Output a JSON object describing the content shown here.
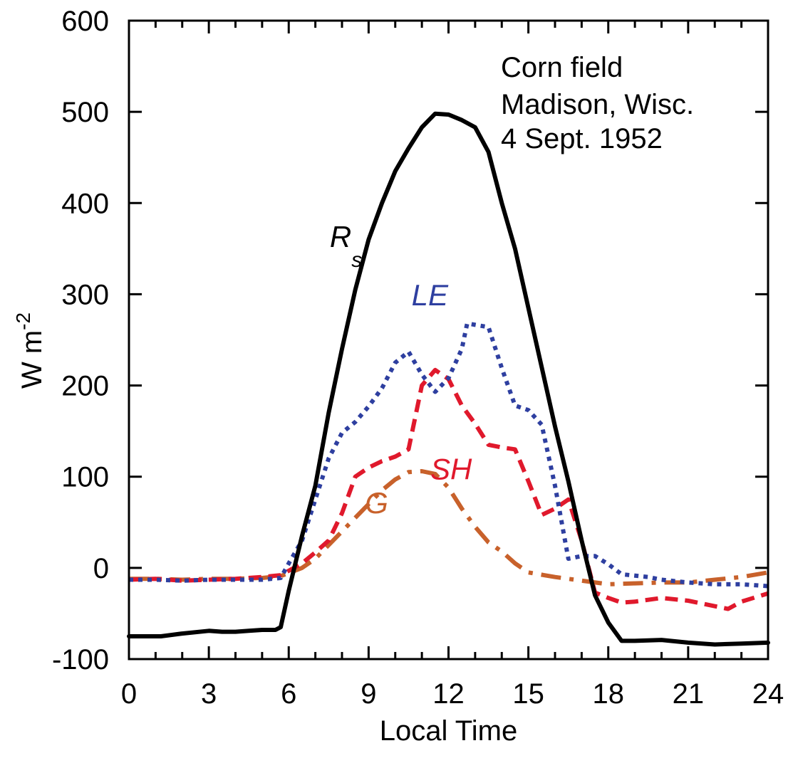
{
  "chart_data": {
    "type": "line",
    "title": "",
    "xlabel": "Local Time",
    "ylabel": "W m",
    "ylabel_superscript": "-2",
    "xlim": [
      0,
      24
    ],
    "ylim": [
      -100,
      600
    ],
    "xticks": [
      0,
      3,
      6,
      9,
      12,
      15,
      18,
      21,
      24
    ],
    "xtick_labels": [
      "0",
      "3",
      "6",
      "9",
      "12",
      "15",
      "18",
      "21",
      "24"
    ],
    "yticks": [
      -100,
      0,
      100,
      200,
      300,
      400,
      500,
      600
    ],
    "ytick_labels": [
      "-100",
      "0",
      "100",
      "200",
      "300",
      "400",
      "500",
      "600"
    ],
    "grid": false,
    "annotation_lines": [
      "Corn field",
      "Madison, Wisc.",
      "4 Sept. 1952"
    ],
    "series": [
      {
        "name": "Rs",
        "label_main": "R",
        "label_sub": "s",
        "color": "#000000",
        "style": "solid",
        "points": [
          [
            0,
            -75
          ],
          [
            1.2,
            -75
          ],
          [
            2,
            -72
          ],
          [
            3,
            -69
          ],
          [
            3.5,
            -70
          ],
          [
            4,
            -70
          ],
          [
            4.5,
            -69
          ],
          [
            5,
            -68
          ],
          [
            5.5,
            -68
          ],
          [
            5.7,
            -65
          ],
          [
            6,
            -25
          ],
          [
            6.5,
            35
          ],
          [
            7,
            90
          ],
          [
            7.5,
            170
          ],
          [
            8,
            240
          ],
          [
            8.5,
            305
          ],
          [
            9,
            360
          ],
          [
            9.5,
            400
          ],
          [
            10,
            435
          ],
          [
            10.5,
            460
          ],
          [
            11,
            483
          ],
          [
            11.5,
            498
          ],
          [
            12,
            497
          ],
          [
            12.5,
            491
          ],
          [
            13,
            483
          ],
          [
            13.5,
            456
          ],
          [
            14,
            400
          ],
          [
            14.5,
            350
          ],
          [
            15,
            285
          ],
          [
            15.5,
            220
          ],
          [
            16,
            155
          ],
          [
            16.5,
            95
          ],
          [
            17,
            30
          ],
          [
            17.5,
            -30
          ],
          [
            18,
            -60
          ],
          [
            18.5,
            -80
          ],
          [
            19,
            -80
          ],
          [
            20,
            -79
          ],
          [
            21,
            -82
          ],
          [
            22,
            -84
          ],
          [
            23,
            -83
          ],
          [
            24,
            -82
          ]
        ]
      },
      {
        "name": "LE",
        "label_main": "LE",
        "color": "#2e3fa0",
        "style": "dotted",
        "points": [
          [
            0,
            -13
          ],
          [
            1,
            -13
          ],
          [
            2,
            -14
          ],
          [
            3,
            -13
          ],
          [
            4,
            -13
          ],
          [
            5,
            -13
          ],
          [
            5.7,
            -11
          ],
          [
            6,
            5
          ],
          [
            6.5,
            30
          ],
          [
            7,
            75
          ],
          [
            7.5,
            120
          ],
          [
            8,
            148
          ],
          [
            8.5,
            160
          ],
          [
            9,
            177
          ],
          [
            9.5,
            197
          ],
          [
            10,
            225
          ],
          [
            10.5,
            237
          ],
          [
            11,
            212
          ],
          [
            11.5,
            193
          ],
          [
            12,
            208
          ],
          [
            12.5,
            240
          ],
          [
            12.7,
            268
          ],
          [
            13.5,
            264
          ],
          [
            14,
            219
          ],
          [
            14.5,
            178
          ],
          [
            15,
            173
          ],
          [
            15.5,
            157
          ],
          [
            16,
            90
          ],
          [
            16.5,
            10
          ],
          [
            17,
            13
          ],
          [
            17.5,
            13
          ],
          [
            18,
            4
          ],
          [
            18.5,
            -7
          ],
          [
            19.5,
            -10
          ],
          [
            20,
            -13
          ],
          [
            21,
            -16
          ],
          [
            22,
            -18
          ],
          [
            23,
            -18
          ],
          [
            24,
            -20
          ]
        ]
      },
      {
        "name": "SH",
        "label_main": "SH",
        "color": "#e0192c",
        "style": "dashed",
        "points": [
          [
            0,
            -13
          ],
          [
            1,
            -12
          ],
          [
            2,
            -14
          ],
          [
            3,
            -13
          ],
          [
            4,
            -12
          ],
          [
            5,
            -10
          ],
          [
            5.7,
            -8
          ],
          [
            6.5,
            5
          ],
          [
            7,
            17
          ],
          [
            7.5,
            30
          ],
          [
            8,
            60
          ],
          [
            8.5,
            100
          ],
          [
            9,
            110
          ],
          [
            9.5,
            117
          ],
          [
            10,
            122
          ],
          [
            10.5,
            130
          ],
          [
            11,
            200
          ],
          [
            11.5,
            217
          ],
          [
            12,
            207
          ],
          [
            12.5,
            178
          ],
          [
            13,
            158
          ],
          [
            13.5,
            135
          ],
          [
            14,
            132
          ],
          [
            14.5,
            130
          ],
          [
            15,
            95
          ],
          [
            15.5,
            58
          ],
          [
            16,
            65
          ],
          [
            16.5,
            75
          ],
          [
            17,
            30
          ],
          [
            17.5,
            -27
          ],
          [
            18,
            -33
          ],
          [
            18.5,
            -38
          ],
          [
            19,
            -37
          ],
          [
            20,
            -33
          ],
          [
            21,
            -36
          ],
          [
            22,
            -42
          ],
          [
            22.5,
            -45
          ],
          [
            23,
            -37
          ],
          [
            24,
            -28
          ]
        ]
      },
      {
        "name": "G",
        "label_main": "G",
        "color": "#c8612b",
        "style": "dashdot",
        "points": [
          [
            0,
            -12
          ],
          [
            1,
            -12
          ],
          [
            2,
            -13
          ],
          [
            3,
            -12
          ],
          [
            4,
            -12
          ],
          [
            5,
            -11
          ],
          [
            5.7,
            -9
          ],
          [
            6.5,
            0
          ],
          [
            7,
            10
          ],
          [
            7.5,
            25
          ],
          [
            8,
            40
          ],
          [
            8.5,
            55
          ],
          [
            9,
            70
          ],
          [
            9.5,
            85
          ],
          [
            10,
            97
          ],
          [
            10.5,
            105
          ],
          [
            11,
            106
          ],
          [
            11.5,
            103
          ],
          [
            12,
            88
          ],
          [
            12.5,
            65
          ],
          [
            13,
            45
          ],
          [
            13.5,
            28
          ],
          [
            14,
            18
          ],
          [
            14.5,
            5
          ],
          [
            15,
            -5
          ],
          [
            16,
            -10
          ],
          [
            17,
            -14
          ],
          [
            18,
            -18
          ],
          [
            19,
            -17
          ],
          [
            20,
            -16
          ],
          [
            21,
            -16
          ],
          [
            22,
            -13
          ],
          [
            23,
            -10
          ],
          [
            24,
            -5
          ]
        ]
      }
    ]
  }
}
